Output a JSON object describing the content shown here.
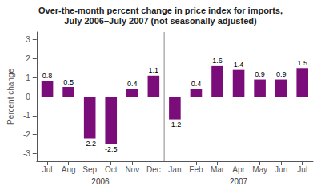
{
  "chart_data": {
    "type": "bar",
    "title": "Over-the-month percent change in price index for imports,",
    "subtitle": "July 2006–July 2007 (not seasonally adjusted)",
    "ylabel": "Percent change",
    "categories": [
      "Jul",
      "Aug",
      "Sep",
      "Oct",
      "Nov",
      "Dec",
      "Jan",
      "Feb",
      "Mar",
      "Apr",
      "May",
      "Jun",
      "Jul"
    ],
    "values": [
      0.8,
      0.5,
      -2.2,
      -2.5,
      0.4,
      1.1,
      -1.2,
      0.4,
      1.6,
      1.4,
      0.9,
      0.9,
      1.5
    ],
    "color": "#7b0d7b",
    "ylim": [
      -3.4,
      3.4
    ],
    "yticks": [
      -3,
      -2,
      -1,
      0,
      1,
      2,
      3
    ],
    "grid": false,
    "data_labels": true,
    "annotations": [
      {
        "text": "2006",
        "from": 0,
        "to": 5
      },
      {
        "text": "2007",
        "from": 6,
        "to": 12
      }
    ]
  }
}
